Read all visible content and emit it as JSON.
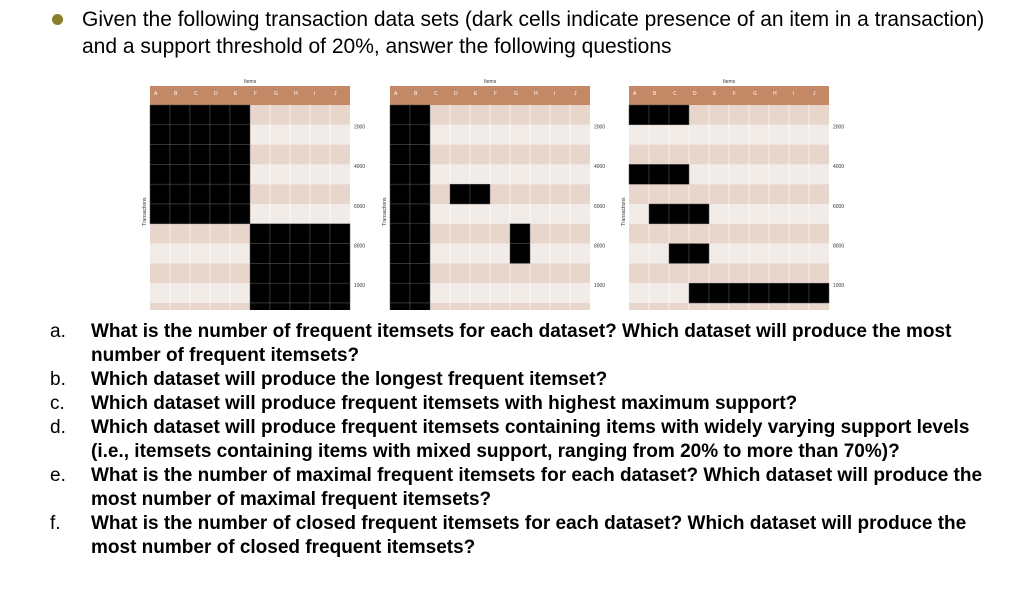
{
  "intro": {
    "text": "Given the following transaction data sets (dark cells indicate presence of an item in a transaction) and a support threshold of 20%, answer the following questions"
  },
  "colors": {
    "header": "#c38866",
    "row_dark": "#e8d5cc",
    "row_light": "#f2ece8",
    "cell_filled": "#000000",
    "bullet": "#8b7d2a"
  },
  "figures": {
    "items_label": "Items",
    "transactions_label": "Transactions",
    "columns": [
      "A",
      "B",
      "C",
      "D",
      "E",
      "F",
      "G",
      "H",
      "I",
      "J"
    ],
    "row_ticks": [
      "2000",
      "4000",
      "6000",
      "8000",
      "10000"
    ],
    "datasets": [
      {
        "filled": [
          {
            "cols": [
              0,
              1,
              2,
              3,
              4
            ],
            "rows": [
              0,
              1,
              2,
              3,
              4,
              5
            ]
          },
          {
            "cols": [
              5,
              6,
              7,
              8,
              9
            ],
            "rows": [
              6,
              7,
              8,
              9,
              10
            ]
          }
        ]
      },
      {
        "filled": [
          {
            "cols": [
              0,
              1
            ],
            "rows": [
              0,
              1,
              2,
              3,
              4,
              5,
              6,
              7,
              8,
              9,
              10
            ]
          },
          {
            "cols": [
              3,
              4
            ],
            "rows": [
              4
            ]
          },
          {
            "cols": [
              6
            ],
            "rows": [
              6,
              7
            ]
          }
        ]
      },
      {
        "filled": [
          {
            "cols": [
              0,
              1,
              2
            ],
            "rows": [
              0
            ]
          },
          {
            "cols": [
              0,
              1,
              2
            ],
            "rows": [
              3
            ]
          },
          {
            "cols": [
              1,
              2,
              3
            ],
            "rows": [
              5
            ]
          },
          {
            "cols": [
              2,
              3
            ],
            "rows": [
              7
            ]
          },
          {
            "cols": [
              3,
              4,
              5,
              6,
              7,
              8,
              9
            ],
            "rows": [
              9
            ]
          }
        ]
      }
    ]
  },
  "questions": [
    {
      "letter": "a.",
      "text": "What is the number of frequent itemsets for each dataset? Which dataset will produce the most number of frequent itemsets?"
    },
    {
      "letter": "b.",
      "text": "Which dataset will produce the longest frequent itemset?"
    },
    {
      "letter": "c.",
      "text": "Which dataset will produce frequent itemsets with highest maximum support?"
    },
    {
      "letter": "d.",
      "text": "Which dataset will produce frequent itemsets containing items with widely varying support levels (i.e., itemsets containing items with mixed support, ranging from 20% to more than 70%)?"
    },
    {
      "letter": "e.",
      "text": "What is the number of maximal frequent itemsets for each dataset? Which dataset will produce the most number of maximal frequent itemsets?"
    },
    {
      "letter": "f.",
      "text": "What is the number of closed frequent itemsets for each dataset? Which dataset will produce the most number of closed frequent itemsets?"
    }
  ]
}
